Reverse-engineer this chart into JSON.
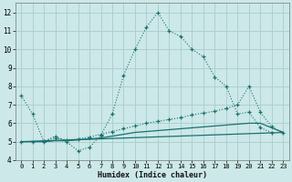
{
  "background_color": "#cce8e8",
  "grid_color": "#aacccc",
  "line_color": "#1a7070",
  "marker": "+",
  "xlabel": "Humidex (Indice chaleur)",
  "xlim": [
    -0.5,
    23.5
  ],
  "ylim": [
    4,
    12.5
  ],
  "yticks": [
    4,
    5,
    6,
    7,
    8,
    9,
    10,
    11,
    12
  ],
  "xticks": [
    0,
    1,
    2,
    3,
    4,
    5,
    6,
    7,
    8,
    9,
    10,
    11,
    12,
    13,
    14,
    15,
    16,
    17,
    18,
    19,
    20,
    21,
    22,
    23
  ],
  "series": [
    {
      "x": [
        0,
        1,
        2,
        3,
        4,
        5,
        6,
        7,
        8,
        9,
        10,
        11,
        12,
        13,
        14,
        15,
        16,
        17,
        18,
        19,
        20,
        21,
        22
      ],
      "y": [
        7.5,
        6.5,
        5.0,
        5.3,
        5.0,
        4.5,
        4.7,
        5.35,
        6.5,
        8.6,
        10.0,
        11.2,
        12.0,
        11.0,
        10.7,
        10.0,
        9.6,
        8.5,
        8.0,
        6.5,
        6.6,
        5.75,
        5.5
      ]
    },
    {
      "x": [
        0,
        1,
        2,
        3,
        4,
        5,
        6,
        7,
        8,
        9,
        10,
        11,
        12,
        13,
        14,
        15,
        16,
        17,
        18,
        19,
        20,
        21,
        22,
        23
      ],
      "y": [
        5.0,
        5.0,
        5.05,
        5.2,
        5.1,
        5.15,
        5.25,
        5.4,
        5.55,
        5.7,
        5.85,
        6.0,
        6.1,
        6.2,
        6.3,
        6.45,
        6.55,
        6.65,
        6.8,
        7.0,
        8.0,
        6.6,
        5.8,
        5.5
      ]
    },
    {
      "x": [
        0,
        1,
        2,
        3,
        4,
        5,
        6,
        7,
        8,
        9,
        10,
        11,
        12,
        13,
        14,
        15,
        16,
        17,
        18,
        19,
        20,
        21,
        22,
        23
      ],
      "y": [
        5.0,
        5.0,
        5.0,
        5.05,
        5.05,
        5.1,
        5.15,
        5.2,
        5.3,
        5.4,
        5.5,
        5.55,
        5.6,
        5.65,
        5.7,
        5.75,
        5.8,
        5.85,
        5.9,
        5.95,
        6.0,
        6.0,
        5.75,
        5.5
      ]
    },
    {
      "x": [
        0,
        23
      ],
      "y": [
        5.0,
        5.5
      ]
    }
  ]
}
